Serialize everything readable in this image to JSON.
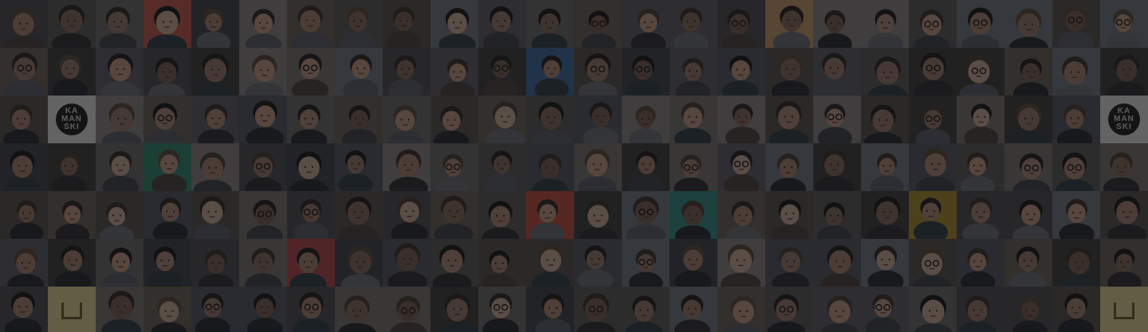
{
  "mosaic": {
    "columns": 24,
    "rows": 7,
    "overlay_color": "#121214",
    "text_tiles": [
      {
        "row": 2,
        "col": 1,
        "label": "KA\nMAN\nSKI"
      },
      {
        "row": 2,
        "col": 23,
        "label": "KA\nMAN\nSKI"
      }
    ],
    "mark_tiles": [
      {
        "row": 6,
        "col": 1,
        "icon": "m-logo-icon"
      },
      {
        "row": 6,
        "col": 23,
        "icon": "m-logo-icon"
      }
    ],
    "accent_tiles": [
      {
        "row": 0,
        "col": 3,
        "color": "#c4554a"
      },
      {
        "row": 0,
        "col": 16,
        "color": "#c99b6a"
      },
      {
        "row": 4,
        "col": 11,
        "color": "#c84a3c"
      },
      {
        "row": 4,
        "col": 14,
        "color": "#2f8f86"
      },
      {
        "row": 4,
        "col": 19,
        "color": "#a8902a"
      },
      {
        "row": 5,
        "col": 6,
        "color": "#b8454a"
      },
      {
        "row": 3,
        "col": 3,
        "color": "#2a8a6a"
      },
      {
        "row": 1,
        "col": 11,
        "color": "#3a6aa0"
      }
    ]
  }
}
